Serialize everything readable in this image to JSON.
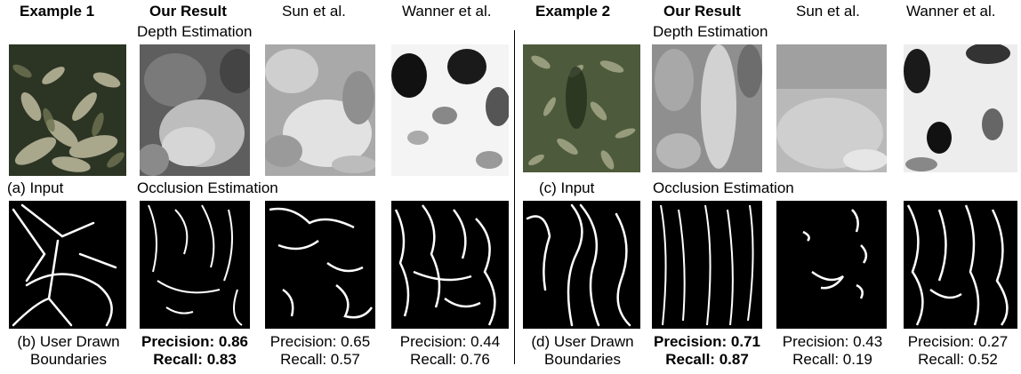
{
  "examples": [
    {
      "header": "Example 1",
      "method_headers": [
        "Our Result",
        "Sun et al.",
        "Wanner et al."
      ],
      "depth_label": "Depth Estimation",
      "occlusion_label": "Occlusion Estimation",
      "input_label": "(a) Input",
      "user_label_1": "(b) User Drawn",
      "user_label_2": "Boundaries",
      "metrics": [
        {
          "precision": "Precision: 0.86",
          "recall": "Recall: 0.83",
          "best": true
        },
        {
          "precision": "Precision: 0.65",
          "recall": "Recall: 0.57",
          "best": false
        },
        {
          "precision": "Precision: 0.44",
          "recall": "Recall: 0.76",
          "best": false
        }
      ]
    },
    {
      "header": "Example 2",
      "method_headers": [
        "Our Result",
        "Sun et al.",
        "Wanner et al."
      ],
      "depth_label": "Depth Estimation",
      "occlusion_label": "Occlusion Estimation",
      "input_label": "(c) Input",
      "user_label_1": "(d) User Drawn",
      "user_label_2": "Boundaries",
      "metrics": [
        {
          "precision": "Precision: 0.71",
          "recall": "Recall: 0.87",
          "best": true
        },
        {
          "precision": "Precision: 0.43",
          "recall": "Recall: 0.19",
          "best": false
        },
        {
          "precision": "Precision: 0.27",
          "recall": "Recall: 0.52",
          "best": false
        }
      ]
    }
  ],
  "colors": {
    "foliage_dark": "#3b4630",
    "foliage_light": "#b8b49a",
    "boundary_white": "#ffffff",
    "mask_black": "#000000"
  }
}
